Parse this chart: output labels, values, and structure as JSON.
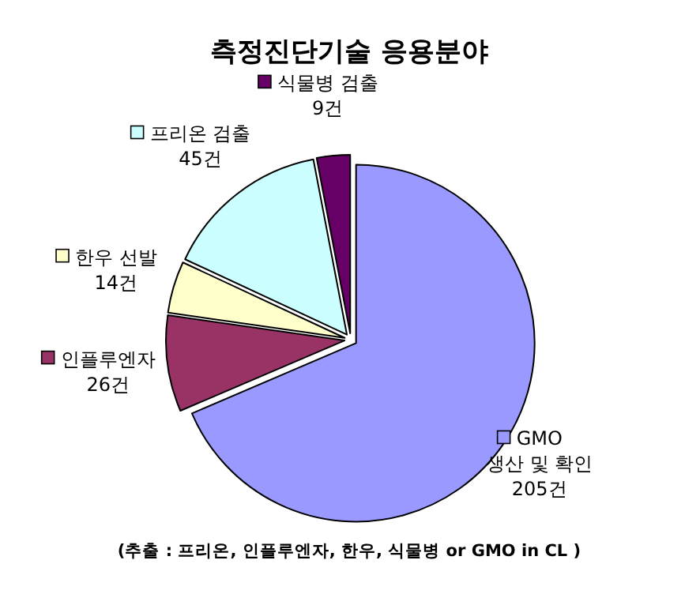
{
  "chart_data": {
    "type": "pie",
    "title": "측정진단기술 응용분야",
    "categories": [
      "GMO 생산 및 확인",
      "인플루엔자",
      "한우 선발",
      "프리온 검출",
      "식물병 검출"
    ],
    "values": [
      205,
      26,
      14,
      45,
      9
    ],
    "value_labels": [
      "205건",
      "26건",
      "14건",
      "45건",
      "9건"
    ],
    "colors": [
      "#9999ff",
      "#993366",
      "#ffffcc",
      "#ccffff",
      "#660066"
    ],
    "legend": "left",
    "annotations": [
      "(추출 : 프리온, 인플루엔자, 한우, 식물병 or GMO in CL )"
    ]
  }
}
